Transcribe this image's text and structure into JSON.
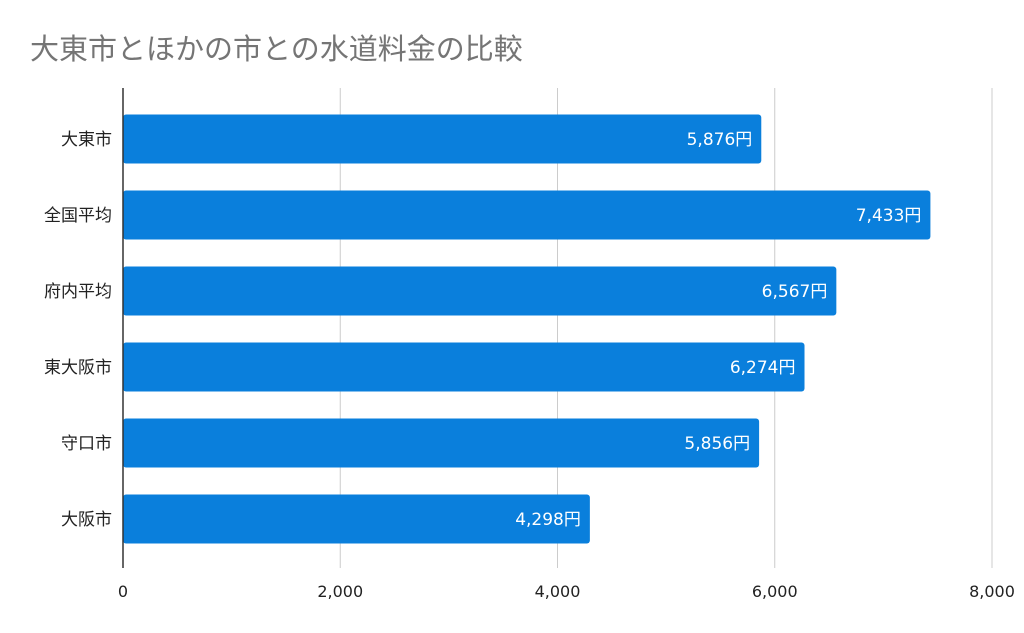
{
  "chart_data": {
    "type": "bar",
    "orientation": "horizontal",
    "title": "大東市とほかの市との水道料金の比較",
    "categories": [
      "大東市",
      "全国平均",
      "府内平均",
      "東大阪市",
      "守口市",
      "大阪市"
    ],
    "values": [
      5876,
      7433,
      6567,
      6274,
      5856,
      4298
    ],
    "data_labels": [
      "5,876円",
      "7,433円",
      "6,567円",
      "6,274円",
      "5,856円",
      "4,298円"
    ],
    "xlim": [
      0,
      8000
    ],
    "xticks": [
      0,
      2000,
      4000,
      6000,
      8000
    ],
    "xtick_labels": [
      "0",
      "2,000",
      "4,000",
      "6,000",
      "8,000"
    ],
    "xlabel": "",
    "ylabel": "",
    "grid": "vertical",
    "legend": "none",
    "bar_color": "#0a7fdc"
  }
}
